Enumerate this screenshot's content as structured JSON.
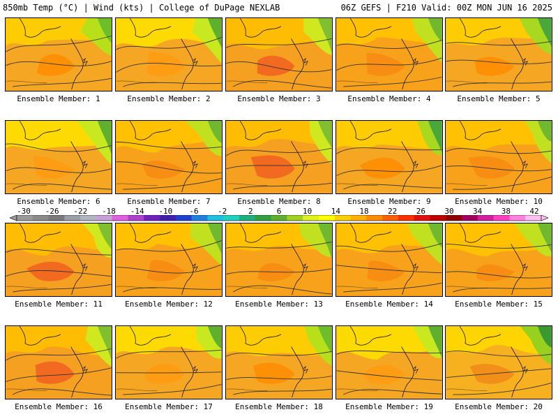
{
  "header": {
    "left": "850mb Temp (°C) | Wind (kts) | College of DuPage NEXLAB",
    "right": "06Z GEFS | F210 Valid: 00Z MON JUN 16 2025"
  },
  "panels": [
    {
      "label": "Ensemble Member: 1",
      "theme": "warm-green-ne"
    },
    {
      "label": "Ensemble Member: 2",
      "theme": "yellow-band"
    },
    {
      "label": "Ensemble Member: 3",
      "theme": "hot-core"
    },
    {
      "label": "Ensemble Member: 4",
      "theme": "orange"
    },
    {
      "label": "Ensemble Member: 5",
      "theme": "orange-green-ne"
    },
    {
      "label": "Ensemble Member: 6",
      "theme": "yellow-band"
    },
    {
      "label": "Ensemble Member: 7",
      "theme": "orange"
    },
    {
      "label": "Ensemble Member: 8",
      "theme": "hot-core"
    },
    {
      "label": "Ensemble Member: 9",
      "theme": "orange-green-ne"
    },
    {
      "label": "Ensemble Member: 10",
      "theme": "orange"
    },
    {
      "label": "Ensemble Member: 11",
      "theme": "hot-core"
    },
    {
      "label": "Ensemble Member: 12",
      "theme": "orange"
    },
    {
      "label": "Ensemble Member: 13",
      "theme": "orange"
    },
    {
      "label": "Ensemble Member: 14",
      "theme": "orange"
    },
    {
      "label": "Ensemble Member: 15",
      "theme": "orange"
    },
    {
      "label": "Ensemble Member: 16",
      "theme": "hot-core"
    },
    {
      "label": "Ensemble Member: 17",
      "theme": "yellow-band"
    },
    {
      "label": "Ensemble Member: 18",
      "theme": "warm-green-ne"
    },
    {
      "label": "Ensemble Member: 19",
      "theme": "yellow-band"
    },
    {
      "label": "Ensemble Member: 20",
      "theme": "green-east"
    }
  ],
  "colorbar": {
    "ticks": [
      "-30",
      "-26",
      "-22",
      "-18",
      "-14",
      "-10",
      "-6",
      "-2",
      "2",
      "6",
      "10",
      "14",
      "18",
      "22",
      "26",
      "30",
      "34",
      "38",
      "42"
    ],
    "colors": [
      "#9a9a9a",
      "#8a8a8a",
      "#7a7a7a",
      "#9aa0a8",
      "#b0b6c0",
      "#c8a0d8",
      "#e060e0",
      "#b040d0",
      "#7020c0",
      "#4020b0",
      "#2040d0",
      "#2080e0",
      "#20c0e0",
      "#20d0c0",
      "#20b080",
      "#30a040",
      "#60b030",
      "#a0d020",
      "#e0f020",
      "#ffff00",
      "#ffd000",
      "#ffb000",
      "#ff8c00",
      "#ff6000",
      "#ff3000",
      "#e01010",
      "#c00000",
      "#900000",
      "#a00060",
      "#d020a0",
      "#ff40c0",
      "#ff80e0",
      "#ffc0f0"
    ]
  }
}
